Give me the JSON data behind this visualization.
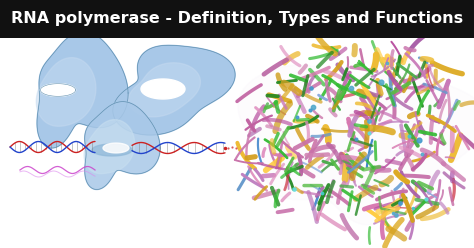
{
  "title": "RNA polymerase - Definition, Types and Functions",
  "title_bg": "#111111",
  "title_color": "#ffffff",
  "title_fontsize": 11.5,
  "bg_color": "#ffffff",
  "blob_color_light": "#a8c8e8",
  "blob_color_mid": "#8ab8d8",
  "blob_edge_color": "#6090b0",
  "dna_color1": "#cc2222",
  "dna_color2": "#2244cc",
  "rna_color": "#cc44cc",
  "protein_pink": "#cc88bb",
  "protein_purple": "#b866b8",
  "protein_yellow": "#ddaa22",
  "protein_green": "#44aa44",
  "protein_blue": "#4488cc"
}
